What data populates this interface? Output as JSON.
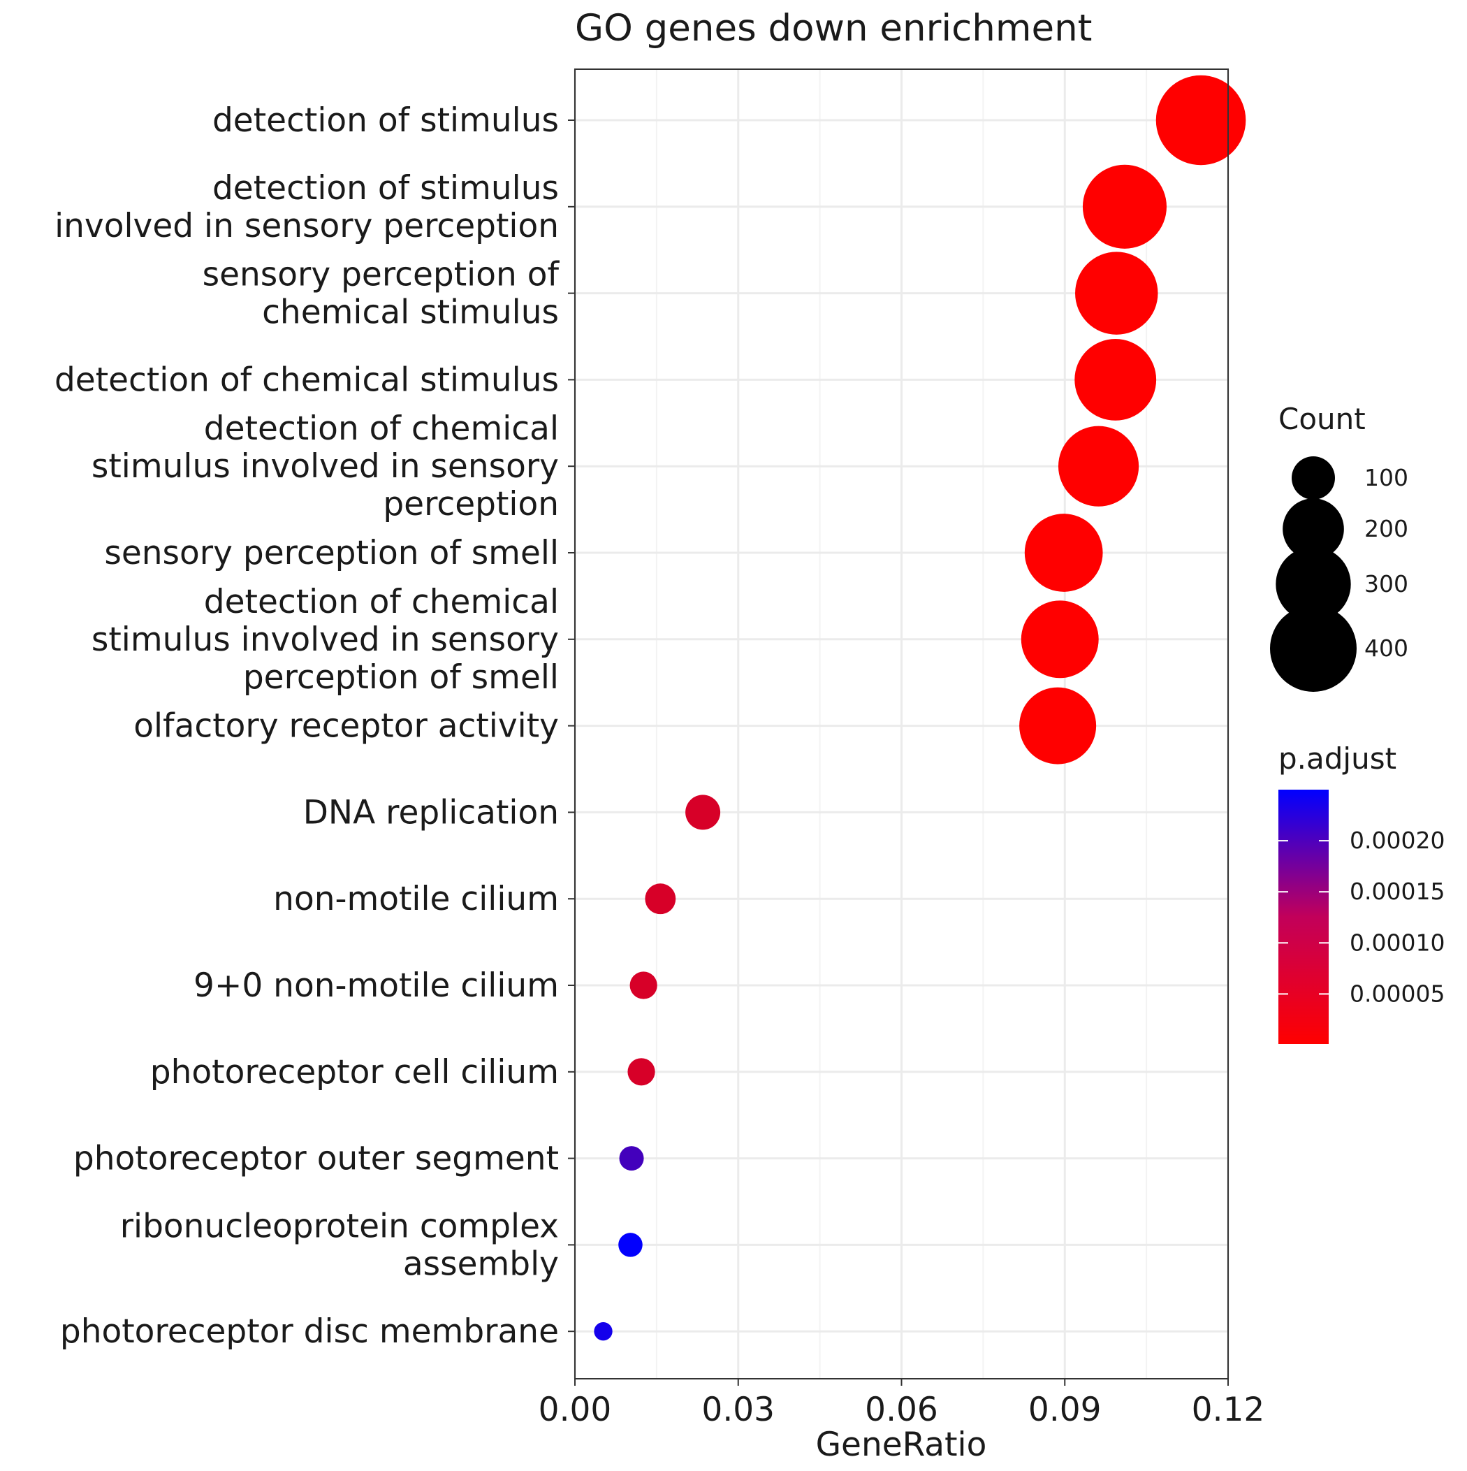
{
  "chart_data": {
    "type": "scatter",
    "title": "GO genes down enrichment",
    "xlabel": "GeneRatio",
    "ylabel": "",
    "xlim": [
      0,
      0.12
    ],
    "x_ticks": [
      "0.00",
      "0.03",
      "0.06",
      "0.09",
      "0.12"
    ],
    "grid": true,
    "legend_position": "right",
    "categories": [
      "detection of stimulus",
      "detection of stimulus involved in sensory perception",
      "sensory perception of chemical stimulus",
      "detection of chemical stimulus",
      "detection of chemical stimulus involved in sensory perception",
      "sensory perception of smell",
      "detection of chemical stimulus involved in sensory perception of smell",
      "olfactory receptor activity",
      "DNA replication",
      "non-motile cilium",
      "9+0 non-motile cilium",
      "photoreceptor cell cilium",
      "photoreceptor outer segment",
      "ribonucleoprotein complex assembly",
      "photoreceptor disc membrane"
    ],
    "category_label_lines": [
      [
        "detection of stimulus"
      ],
      [
        "detection of stimulus",
        "involved in sensory perception"
      ],
      [
        "sensory perception of",
        "chemical stimulus"
      ],
      [
        "detection of chemical stimulus"
      ],
      [
        "detection of chemical",
        "stimulus involved in sensory",
        "perception"
      ],
      [
        "sensory perception of smell"
      ],
      [
        "detection of chemical",
        "stimulus involved in sensory",
        "perception of smell"
      ],
      [
        "olfactory receptor activity"
      ],
      [
        "DNA replication"
      ],
      [
        "non-motile cilium"
      ],
      [
        "9+0 non-motile cilium"
      ],
      [
        "photoreceptor cell cilium"
      ],
      [
        "photoreceptor outer segment"
      ],
      [
        "ribonucleoprotein complex",
        "assembly"
      ],
      [
        "photoreceptor disc membrane"
      ]
    ],
    "gene_ratio": [
      0.115,
      0.101,
      0.0995,
      0.0993,
      0.0962,
      0.0898,
      0.0891,
      0.0887,
      0.0235,
      0.0157,
      0.0126,
      0.0122,
      0.0104,
      0.0102,
      0.0052
    ],
    "count": [
      430,
      375,
      365,
      355,
      345,
      325,
      320,
      315,
      65,
      50,
      40,
      40,
      32,
      31,
      18
    ],
    "p_adjust": [
      1e-06,
      1e-06,
      1e-06,
      1e-06,
      1e-06,
      1e-06,
      1e-06,
      1e-06,
      4e-05,
      4e-05,
      4e-05,
      4e-05,
      0.000185,
      0.000248,
      0.00023
    ],
    "size_legend": {
      "title": "Count",
      "values": [
        100,
        200,
        300,
        400
      ],
      "labels": [
        "100",
        "200",
        "300",
        "400"
      ]
    },
    "color_legend": {
      "title": "p.adjust",
      "range": [
        1e-06,
        0.00025
      ],
      "ticks": [
        5e-05,
        0.0001,
        0.00015,
        0.0002
      ],
      "tick_labels": [
        "0.00005",
        "0.00010",
        "0.00015",
        "0.00020"
      ],
      "low_color": "#ff0000",
      "high_color": "#0000ff"
    }
  }
}
